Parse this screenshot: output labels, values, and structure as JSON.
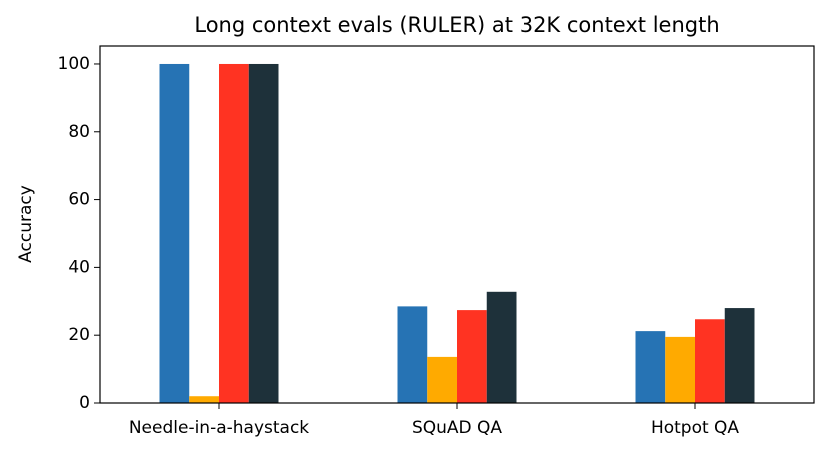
{
  "chart_data": {
    "type": "bar",
    "title": "Long context evals (RULER) at 32K context length",
    "ylabel": "Accuracy",
    "categories": [
      "Needle-in-a-haystack",
      "SQuAD QA",
      "Hotpot QA"
    ],
    "series": [
      {
        "color": "#2673b4",
        "values": [
          100,
          28.5,
          21.2
        ]
      },
      {
        "color": "#ffaa00",
        "values": [
          2,
          13.6,
          19.5
        ]
      },
      {
        "color": "#ff3322",
        "values": [
          100,
          27.4,
          24.7
        ]
      },
      {
        "color": "#1e313a",
        "values": [
          100,
          32.8,
          28
        ]
      }
    ],
    "ylim": [
      0,
      105.3
    ],
    "yticks": [
      0,
      20,
      40,
      60,
      80,
      100
    ]
  }
}
